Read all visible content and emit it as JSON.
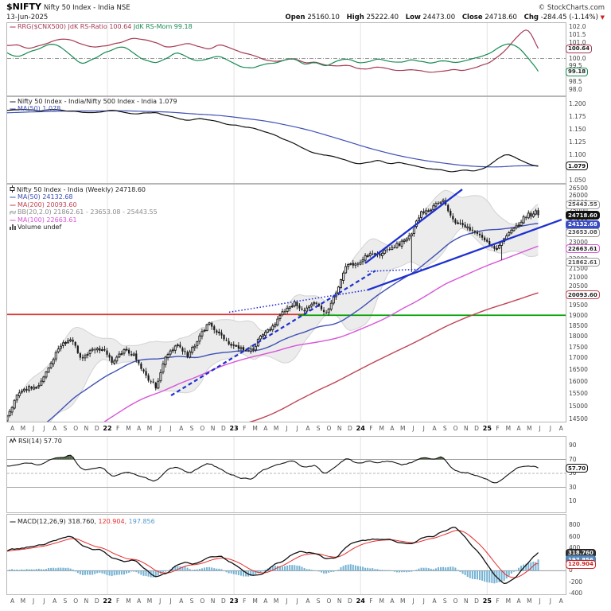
{
  "header": {
    "symbol": "$NIFTY",
    "name": "Nifty 50 Index - India NSE",
    "date": "13-Jun-2025",
    "copyright": "© StockCharts.com",
    "quote": {
      "open_label": "Open",
      "open": "25160.10",
      "high_label": "High",
      "high": "25222.40",
      "low_label": "Low",
      "low": "24473.00",
      "close_label": "Close",
      "close": "24718.60",
      "chg_label": "Chg",
      "chg": "-284.45 (-1.14%)",
      "arrow": "▼"
    }
  },
  "legends": {
    "rrg": {
      "dash": "—",
      "ratio_text": "RRG($CNX500) JdK RS-Ratio 100.64",
      "mom_text": "JdK RS-Mom 99.18"
    },
    "ratio": {
      "dash": "—",
      "line1": "Nifty 50 Index - India/Nifty 500 Index - India 1.079",
      "line2": "MA(50) 1.078"
    },
    "main": {
      "title": "Nifty 50 Index - India (Weekly) 24718.60",
      "ma50": "MA(50) 24132.68",
      "ma200": "MA(200) 20093.60",
      "bb": "BB(20,2.0) 21862.61 - 23653.08 - 25443.55",
      "ma100": "MA(100) 22663.61",
      "volume": "Volume undef"
    },
    "rsi": {
      "text": "RSI(14) 57.70"
    },
    "macd": {
      "dash": "—",
      "label": "MACD(12,26,9)",
      "v1": " 318.760,",
      "v2": " 120.904,",
      "v3": " 197.856"
    }
  },
  "colors": {
    "candle": "#181818",
    "ma50": "#3f51b5",
    "ma100": "#d855d8",
    "ma200": "#c04455",
    "bb_fill": "#ececec",
    "bb_edge": "#d2d2d2",
    "trend": "#1d2fd0",
    "support_red": "#e03030",
    "support_green": "#00a000",
    "rrg_ratio": "#a63a55",
    "rrg_mom": "#168a53",
    "ratio_line": "#111111",
    "rsi_line": "#111111",
    "rsi_fill": "#52674a",
    "macd_line": "#111111",
    "macd_signal": "#e82c2c",
    "macd_hist": "#74b2d4",
    "grid": "#e3e3e3",
    "baseline": "#999999"
  },
  "axes": {
    "rrg": {
      "ticks": [
        {
          "v": 102.0,
          "l": "102.0"
        },
        {
          "v": 101.5,
          "l": "101.5"
        },
        {
          "v": 101.0,
          "l": "101.0"
        },
        {
          "v": 100.5,
          "l": "100.5"
        },
        {
          "v": 100.0,
          "l": "100.0"
        },
        {
          "v": 99.5,
          "l": "99.5"
        },
        {
          "v": 99.0,
          "l": "99.0"
        },
        {
          "v": 98.5,
          "l": "98.5"
        },
        {
          "v": 98.0,
          "l": "98.0"
        }
      ],
      "badges": [
        {
          "v": 100.64,
          "l": "100.64",
          "border": "#a63a55",
          "bg": "#fff",
          "fg": "#222",
          "bold": false
        },
        {
          "v": 99.18,
          "l": "99.18",
          "border": "#168a53",
          "bg": "#fff",
          "fg": "#222",
          "bold": false
        }
      ]
    },
    "ratio": {
      "ticks": [
        {
          "v": 1.2,
          "l": "1.200"
        },
        {
          "v": 1.175,
          "l": "1.175"
        },
        {
          "v": 1.15,
          "l": "1.150"
        },
        {
          "v": 1.125,
          "l": "1.125"
        },
        {
          "v": 1.1,
          "l": "1.100"
        },
        {
          "v": 1.05,
          "l": "1.050"
        }
      ],
      "badges": [
        {
          "v": 1.079,
          "l": "1.079",
          "border": "#111",
          "bg": "#fff",
          "fg": "#111",
          "bold": true
        }
      ]
    },
    "main": {
      "ticks": [
        {
          "v": 26500,
          "l": "26500"
        },
        {
          "v": 26000,
          "l": "26000"
        },
        {
          "v": 25500,
          "l": "25500"
        },
        {
          "v": 25000,
          "l": "25000"
        },
        {
          "v": 24500,
          "l": "24500"
        },
        {
          "v": 24000,
          "l": "24000"
        },
        {
          "v": 23500,
          "l": "23500"
        },
        {
          "v": 23000,
          "l": "23000"
        },
        {
          "v": 22500,
          "l": "22500"
        },
        {
          "v": 22000,
          "l": "22000"
        },
        {
          "v": 21500,
          "l": "21500"
        },
        {
          "v": 21000,
          "l": "21000"
        },
        {
          "v": 20500,
          "l": "20500"
        },
        {
          "v": 20000,
          "l": "20000"
        },
        {
          "v": 19500,
          "l": "19500"
        },
        {
          "v": 19000,
          "l": "19000"
        },
        {
          "v": 18500,
          "l": "18500"
        },
        {
          "v": 18000,
          "l": "18000"
        },
        {
          "v": 17500,
          "l": "17500"
        },
        {
          "v": 17000,
          "l": "17000"
        },
        {
          "v": 16500,
          "l": "16500"
        },
        {
          "v": 16000,
          "l": "16000"
        },
        {
          "v": 15500,
          "l": "15500"
        },
        {
          "v": 15000,
          "l": "15000"
        },
        {
          "v": 14500,
          "l": "14500"
        }
      ],
      "badges": [
        {
          "v": 25443.55,
          "l": "25443.55",
          "border": "#9a9a9a",
          "bg": "#fff",
          "fg": "#555",
          "bold": false
        },
        {
          "v": 24718.6,
          "l": "24718.60",
          "border": "#111",
          "bg": "#111",
          "fg": "#fff",
          "bold": true
        },
        {
          "v": 24132.68,
          "l": "24132.68",
          "border": "#3a4cc4",
          "bg": "#3a4cc4",
          "fg": "#fff",
          "bold": false
        },
        {
          "v": 23653.08,
          "l": "23653.08",
          "border": "#9a9a9a",
          "bg": "#fff",
          "fg": "#555",
          "bold": false
        },
        {
          "v": 22663.61,
          "l": "22663.61",
          "border": "#d855d8",
          "bg": "#fff",
          "fg": "#222",
          "bold": false
        },
        {
          "v": 21862.61,
          "l": "21862.61",
          "border": "#9a9a9a",
          "bg": "#fff",
          "fg": "#555",
          "bold": false
        },
        {
          "v": 20093.6,
          "l": "20093.60",
          "border": "#c04455",
          "bg": "#fff",
          "fg": "#222",
          "bold": false
        }
      ]
    },
    "rsi": {
      "ticks": [
        {
          "v": 90,
          "l": "90"
        },
        {
          "v": 70,
          "l": "70"
        },
        {
          "v": 50,
          "l": "50"
        },
        {
          "v": 30,
          "l": "30"
        },
        {
          "v": 10,
          "l": "10"
        }
      ],
      "badges": [
        {
          "v": 57.7,
          "l": "57.70",
          "border": "#111",
          "bg": "#fff",
          "fg": "#111",
          "bold": true
        }
      ]
    },
    "macd": {
      "ticks": [
        {
          "v": 800,
          "l": "800"
        },
        {
          "v": 600,
          "l": "600"
        },
        {
          "v": 400,
          "l": "400"
        },
        {
          "v": 200,
          "l": "200"
        },
        {
          "v": 0,
          "l": "0"
        },
        {
          "v": -200,
          "l": "-200"
        },
        {
          "v": -400,
          "l": "-400"
        }
      ],
      "badges": [
        {
          "v": 318.76,
          "l": "318.760",
          "border": "#222",
          "bg": "#333",
          "fg": "#fff",
          "bold": false
        },
        {
          "v": 197.856,
          "l": "197.856",
          "border": "#4a7fb5",
          "bg": "#5588bb",
          "fg": "#fff",
          "bold": false
        },
        {
          "v": 120.904,
          "l": "120.904",
          "border": "#cc2222",
          "bg": "#fff",
          "fg": "#cc2222",
          "bold": false
        }
      ]
    }
  },
  "x_axis": {
    "labels": [
      "A",
      "M",
      "J",
      "J",
      "A",
      "S",
      "O",
      "N",
      "D",
      "22",
      "F",
      "M",
      "A",
      "M",
      "J",
      "J",
      "A",
      "S",
      "O",
      "N",
      "D",
      "23",
      "F",
      "M",
      "A",
      "M",
      "J",
      "J",
      "A",
      "S",
      "O",
      "N",
      "D",
      "24",
      "F",
      "M",
      "A",
      "M",
      "J",
      "J",
      "A",
      "S",
      "O",
      "N",
      "D",
      "25",
      "F",
      "M",
      "A",
      "M",
      "J",
      "J",
      "A"
    ],
    "year_indices": [
      9,
      21,
      33,
      45
    ]
  },
  "chart_data": {
    "type": "candlestick",
    "timeframe": "weekly",
    "title": "Nifty 50 Index - India (Weekly)",
    "last_close": 24718.6,
    "ohlc_header": {
      "open": 25160.1,
      "high": 25222.4,
      "low": 24473.0,
      "close": 24718.6,
      "chg": -284.45,
      "chg_pct": -1.14
    },
    "scale": "log",
    "main_ylim": [
      14380,
      26830
    ],
    "months": [
      "2021-04",
      "2021-05",
      "2021-06",
      "2021-07",
      "2021-08",
      "2021-09",
      "2021-10",
      "2021-11",
      "2021-12",
      "2022-01",
      "2022-02",
      "2022-03",
      "2022-04",
      "2022-05",
      "2022-06",
      "2022-07",
      "2022-08",
      "2022-09",
      "2022-10",
      "2022-11",
      "2022-12",
      "2023-01",
      "2023-02",
      "2023-03",
      "2023-04",
      "2023-05",
      "2023-06",
      "2023-07",
      "2023-08",
      "2023-09",
      "2023-10",
      "2023-11",
      "2023-12",
      "2024-01",
      "2024-02",
      "2024-03",
      "2024-04",
      "2024-05",
      "2024-06",
      "2024-07",
      "2024-08",
      "2024-09",
      "2024-10",
      "2024-11",
      "2024-12",
      "2025-01",
      "2025-02",
      "2025-03",
      "2025-04",
      "2025-05",
      "2025-06"
    ],
    "close_anchors": [
      14650,
      15450,
      15720,
      15800,
      16650,
      17600,
      17850,
      17000,
      17350,
      17400,
      16750,
      17450,
      17100,
      16250,
      15780,
      17150,
      17650,
      17100,
      17900,
      18650,
      18100,
      17650,
      17450,
      17350,
      18050,
      18500,
      19200,
      19650,
      19250,
      19650,
      19050,
      20250,
      21750,
      21700,
      22350,
      22300,
      22600,
      22950,
      23500,
      24850,
      25200,
      25800,
      24300,
      24100,
      23650,
      23100,
      22550,
      23350,
      24050,
      24750,
      24718.6
    ],
    "pre_close_anchors": [
      9600,
      10200,
      10800,
      10600,
      11300,
      12000,
      12250,
      8900,
      10100,
      11400,
      12800,
      13800,
      14400
    ],
    "ratio_anchors": [
      1.188,
      1.189,
      1.19,
      1.186,
      1.19,
      1.188,
      1.186,
      1.184,
      1.183,
      1.186,
      1.188,
      1.185,
      1.181,
      1.183,
      1.184,
      1.178,
      1.172,
      1.168,
      1.172,
      1.17,
      1.165,
      1.16,
      1.157,
      1.154,
      1.148,
      1.141,
      1.132,
      1.123,
      1.112,
      1.103,
      1.1,
      1.096,
      1.09,
      1.082,
      1.086,
      1.09,
      1.083,
      1.086,
      1.081,
      1.076,
      1.073,
      1.07,
      1.067,
      1.071,
      1.069,
      1.074,
      1.09,
      1.102,
      1.094,
      1.083,
      1.079
    ],
    "pre_ratio_anchors": [
      1.18,
      1.183,
      1.186
    ],
    "rrg_ratio_anchors": [
      100.8,
      100.9,
      100.6,
      100.8,
      101.0,
      101.3,
      101.2,
      100.9,
      100.7,
      100.8,
      100.9,
      101.1,
      101.3,
      101.2,
      101.0,
      100.7,
      100.8,
      101.0,
      100.8,
      100.6,
      100.9,
      100.7,
      100.4,
      100.2,
      100.0,
      99.8,
      99.9,
      100.0,
      99.7,
      99.8,
      99.6,
      99.5,
      99.6,
      99.4,
      99.3,
      99.5,
      99.3,
      99.2,
      99.3,
      99.2,
      99.1,
      99.2,
      99.3,
      99.2,
      99.4,
      99.6,
      100.0,
      100.6,
      101.4,
      102.0,
      100.64
    ],
    "rrg_mom_anchors": [
      100.3,
      100.1,
      100.4,
      100.6,
      100.9,
      100.8,
      100.2,
      99.6,
      99.9,
      100.3,
      100.6,
      100.8,
      100.3,
      99.9,
      99.7,
      100.0,
      100.4,
      100.1,
      99.8,
      100.0,
      100.2,
      99.8,
      99.5,
      99.4,
      99.6,
      99.7,
      99.9,
      100.0,
      99.6,
      99.8,
      99.5,
      99.9,
      100.0,
      99.7,
      99.8,
      100.0,
      99.8,
      99.7,
      99.9,
      99.8,
      99.7,
      99.9,
      99.7,
      99.8,
      100.0,
      100.2,
      100.6,
      101.0,
      100.8,
      100.1,
      99.18
    ],
    "rsi_anchors": [
      60,
      62,
      65,
      62,
      70,
      74,
      77,
      55,
      57,
      58,
      45,
      53,
      50,
      42,
      38,
      55,
      60,
      50,
      57,
      65,
      58,
      48,
      44,
      41,
      55,
      60,
      64,
      70,
      58,
      63,
      48,
      62,
      72,
      65,
      68,
      66,
      67,
      62,
      65,
      72,
      70,
      74,
      55,
      52,
      48,
      42,
      36,
      45,
      58,
      62,
      57.7
    ],
    "macd_anchors": [
      350,
      380,
      420,
      430,
      500,
      580,
      620,
      450,
      380,
      350,
      220,
      150,
      180,
      20,
      -120,
      -60,
      120,
      150,
      120,
      230,
      260,
      150,
      20,
      -80,
      -60,
      90,
      180,
      320,
      330,
      310,
      220,
      230,
      420,
      520,
      540,
      560,
      540,
      500,
      480,
      560,
      600,
      680,
      780,
      600,
      400,
      150,
      -100,
      -250,
      -120,
      150,
      318.76
    ],
    "macd_values": {
      "macd": 318.76,
      "signal": 120.904,
      "hist": 197.856
    },
    "rsi_value": 57.7,
    "overlay_values": {
      "ma50": 24132.68,
      "ma100": 22663.61,
      "ma200": 20093.6,
      "bb_lower": 21862.61,
      "bb_mid": 23653.08,
      "bb_upper": 25443.55
    },
    "special_lows": [
      {
        "week": 166,
        "low": 21300
      },
      {
        "week": 203,
        "low": 21980
      }
    ],
    "annotations": {
      "trendlines": [
        {
          "t1": 67.3,
          "p1": 15430,
          "t2": 151.2,
          "p2": 21380,
          "style": "dashed"
        },
        {
          "t1": 91.1,
          "p1": 19180,
          "t2": 148.0,
          "p2": 20330,
          "style": "dotted"
        },
        {
          "t1": 148.0,
          "p1": 20330,
          "t2": 227.6,
          "p2": 24430,
          "style": "solid"
        },
        {
          "t1": 147.0,
          "p1": 21800,
          "t2": 186.8,
          "p2": 26440,
          "style": "solid"
        },
        {
          "t1": 148.0,
          "p1": 21340,
          "t2": 171.1,
          "p2": 21470,
          "style": "dotted"
        }
      ],
      "support_lines": [
        {
          "price": 19070,
          "t1": 0,
          "t2": 122.8,
          "color_key": "support_red"
        },
        {
          "price": 19030,
          "t1": 119.5,
          "t2": 230,
          "color_key": "support_green"
        }
      ]
    },
    "rsi_bands": {
      "upper": 70,
      "mid": 50,
      "lower": 30
    }
  }
}
